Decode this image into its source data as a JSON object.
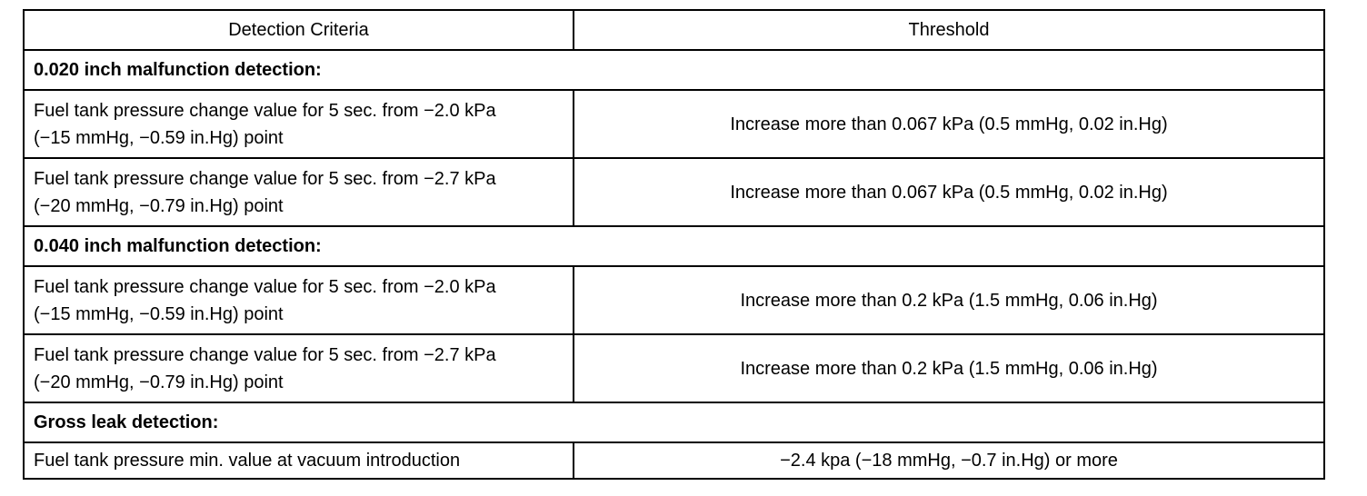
{
  "table": {
    "headers": {
      "criteria": "Detection Criteria",
      "threshold": "Threshold"
    },
    "sections": [
      {
        "title": "0.020 inch malfunction detection:",
        "rows": [
          {
            "criteria_line1": "Fuel tank pressure change value for 5 sec. from −2.0 kPa",
            "criteria_line2": "(−15 mmHg, −0.59 in.Hg) point",
            "threshold": "Increase more than 0.067 kPa (0.5 mmHg, 0.02 in.Hg)"
          },
          {
            "criteria_line1": "Fuel tank pressure change value for 5 sec. from −2.7 kPa",
            "criteria_line2": "(−20 mmHg, −0.79 in.Hg) point",
            "threshold": "Increase more than 0.067 kPa (0.5 mmHg, 0.02 in.Hg)"
          }
        ]
      },
      {
        "title": "0.040 inch malfunction detection:",
        "rows": [
          {
            "criteria_line1": "Fuel tank pressure change value for 5 sec. from −2.0 kPa",
            "criteria_line2": "(−15 mmHg, −0.59 in.Hg) point",
            "threshold": "Increase more than 0.2 kPa (1.5 mmHg, 0.06 in.Hg)"
          },
          {
            "criteria_line1": "Fuel tank pressure change value for 5 sec. from −2.7 kPa",
            "criteria_line2": "(−20 mmHg, −0.79 in.Hg) point",
            "threshold": "Increase more than 0.2 kPa (1.5 mmHg, 0.06 in.Hg)"
          }
        ]
      },
      {
        "title": "Gross leak detection:",
        "rows": [
          {
            "criteria_line1": "Fuel tank pressure min. value at vacuum introduction",
            "criteria_line2": "",
            "threshold": "−2.4 kpa (−18 mmHg, −0.7 in.Hg) or more"
          }
        ]
      }
    ]
  }
}
